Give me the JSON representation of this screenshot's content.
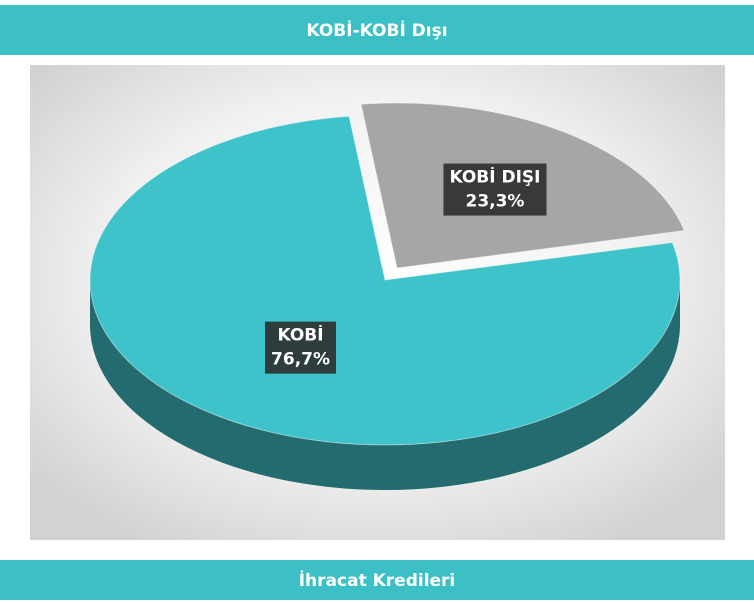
{
  "chart_data": {
    "type": "pie",
    "title": "KOBİ-KOBİ Dışı",
    "categories": [
      "KOBİ",
      "KOBİ DIŞI"
    ],
    "values": [
      76.7,
      23.3
    ],
    "value_labels": [
      "76,7%",
      "23,3%"
    ],
    "colors": [
      "#3fc3ca",
      "#a6a6a6"
    ]
  },
  "footer": {
    "title": "İhracat Kredileri"
  }
}
